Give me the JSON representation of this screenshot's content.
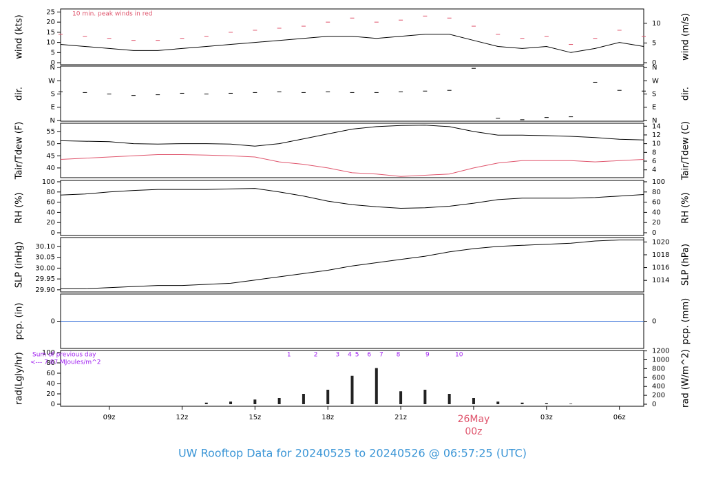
{
  "title": "UW Rooftop Data for 20240525  to  20240526 @ 06:57:25  (UTC)",
  "chart_data": [
    {
      "type": "line",
      "ylabel": "wind (kts)",
      "y2label": "wind (m/s)",
      "annotation": "10 min. peak winds in red",
      "xlim": [
        7,
        31
      ],
      "ylim": [
        -1,
        26.5
      ],
      "yticks": [
        0,
        5,
        10,
        15,
        20,
        25
      ],
      "y2lim": [
        -0.51,
        13.63
      ],
      "y2ticks": [
        0,
        5,
        10
      ],
      "x": [
        7,
        8,
        9,
        10,
        11,
        12,
        13,
        14,
        15,
        16,
        17,
        18,
        19,
        20,
        21,
        22,
        23,
        24,
        25,
        26,
        27,
        28,
        29,
        30,
        31
      ],
      "series": [
        {
          "name": "wind",
          "color": "#000000",
          "marker": "line",
          "values": [
            9,
            8,
            7,
            6,
            6,
            7,
            8,
            9,
            10,
            11,
            12,
            13,
            13,
            12,
            13,
            14,
            14,
            11,
            8,
            7,
            8,
            5,
            7,
            10,
            8
          ]
        },
        {
          "name": "peak",
          "color": "#df536b",
          "marker": "dash",
          "values": [
            14,
            13,
            12,
            11,
            11,
            12,
            13,
            15,
            16,
            17,
            18,
            20,
            22,
            20,
            21,
            23,
            22,
            18,
            14,
            12,
            13,
            9,
            12,
            16,
            13
          ]
        }
      ]
    },
    {
      "type": "scatter",
      "ylabel": "dir.",
      "y2label": "dir.",
      "xlim": [
        7,
        31
      ],
      "ylim": [
        -5,
        370
      ],
      "yticks": [
        {
          "value": 0,
          "label": "N"
        },
        {
          "value": 90,
          "label": "E"
        },
        {
          "value": 180,
          "label": "S"
        },
        {
          "value": 270,
          "label": "W"
        },
        {
          "value": 360,
          "label": "N"
        }
      ],
      "y2lim": [
        -5,
        370
      ],
      "y2ticks": [
        {
          "value": 0,
          "label": "N"
        },
        {
          "value": 90,
          "label": "E"
        },
        {
          "value": 180,
          "label": "S"
        },
        {
          "value": 270,
          "label": "W"
        },
        {
          "value": 360,
          "label": "N"
        }
      ],
      "x": [
        7,
        8,
        9,
        10,
        11,
        12,
        13,
        14,
        15,
        16,
        17,
        18,
        19,
        20,
        21,
        22,
        23,
        24,
        25,
        26,
        27,
        28,
        29,
        30,
        31
      ],
      "series": [
        {
          "name": "dir",
          "color": "#000000",
          "marker": "dash",
          "values": [
            195,
            190,
            180,
            170,
            175,
            185,
            180,
            185,
            190,
            195,
            190,
            195,
            190,
            190,
            195,
            200,
            205,
            355,
            15,
            5,
            20,
            25,
            260,
            205,
            200
          ]
        }
      ]
    },
    {
      "type": "line",
      "ylabel": "Tair/Tdew (F)",
      "y2label": "Tair/Tdew (C)",
      "xlim": [
        7,
        31
      ],
      "ylim": [
        36.0,
        58.4
      ],
      "yticks": [
        40,
        45,
        50,
        55
      ],
      "y2lim": [
        2.22,
        14.67
      ],
      "y2ticks": [
        4,
        6,
        8,
        10,
        12,
        14
      ],
      "x": [
        7,
        8,
        9,
        10,
        11,
        12,
        13,
        14,
        15,
        16,
        17,
        18,
        19,
        20,
        21,
        22,
        23,
        24,
        25,
        26,
        27,
        28,
        29,
        30,
        31
      ],
      "series": [
        {
          "name": "Tair",
          "color": "#000000",
          "marker": "line",
          "values": [
            51.2,
            51,
            50.8,
            50,
            49.8,
            50,
            50,
            49.8,
            49,
            50,
            52,
            54,
            56,
            57,
            57.5,
            57.6,
            57,
            55,
            53.5,
            53.5,
            53.3,
            53,
            52.5,
            51.8,
            51.5
          ]
        },
        {
          "name": "Tdew",
          "color": "#df536b",
          "marker": "line",
          "values": [
            43.5,
            44,
            44.5,
            45,
            45.5,
            45.5,
            45.3,
            45,
            44.5,
            42.5,
            41.5,
            40,
            38,
            37.5,
            36.5,
            37,
            37.5,
            40,
            42,
            43,
            43,
            43,
            42.5,
            43,
            43.5
          ]
        }
      ]
    },
    {
      "type": "line",
      "ylabel": "RH (%)",
      "y2label": "RH (%)",
      "xlim": [
        7,
        31
      ],
      "ylim": [
        -5.4,
        102.7
      ],
      "yticks": [
        0,
        20,
        40,
        60,
        80,
        100
      ],
      "y2lim": [
        -5.4,
        102.7
      ],
      "y2ticks": [
        0,
        20,
        40,
        60,
        80,
        100
      ],
      "x": [
        7,
        8,
        9,
        10,
        11,
        12,
        13,
        14,
        15,
        16,
        17,
        18,
        19,
        20,
        21,
        22,
        23,
        24,
        25,
        26,
        27,
        28,
        29,
        30,
        31
      ],
      "series": [
        {
          "name": "RH",
          "color": "#000000",
          "marker": "line",
          "values": [
            74,
            76,
            80,
            83,
            85,
            85,
            85,
            86,
            87,
            80,
            72,
            62,
            55,
            51,
            48,
            49,
            52,
            58,
            65,
            68,
            68,
            68,
            69,
            72,
            75
          ]
        }
      ]
    },
    {
      "type": "line",
      "ylabel": "SLP (inHg)",
      "y2label": "SLP (hPa)",
      "xlim": [
        7,
        31
      ],
      "ylim": [
        29.89,
        30.141
      ],
      "yticks": [
        {
          "value": 29.9,
          "label": "29.90"
        },
        29.95,
        {
          "value": 30,
          "label": "30.00"
        },
        30.05,
        {
          "value": 30.1,
          "label": "30.10"
        }
      ],
      "y2lim": [
        1012.19,
        1020.69
      ],
      "y2ticks": [
        1014,
        1016,
        1018,
        1020
      ],
      "x": [
        7,
        8,
        9,
        10,
        11,
        12,
        13,
        14,
        15,
        16,
        17,
        18,
        19,
        20,
        21,
        22,
        23,
        24,
        25,
        26,
        27,
        28,
        29,
        30,
        31
      ],
      "series": [
        {
          "name": "SLP",
          "color": "#000000",
          "marker": "line",
          "values": [
            29.905,
            29.905,
            29.91,
            29.915,
            29.92,
            29.92,
            29.925,
            29.93,
            29.945,
            29.96,
            29.975,
            29.99,
            30.01,
            30.025,
            30.04,
            30.055,
            30.075,
            30.09,
            30.1,
            30.105,
            30.11,
            30.115,
            30.125,
            30.13,
            30.13
          ]
        }
      ]
    },
    {
      "type": "line",
      "ylabel": "pcp. (in)",
      "y2label": "pcp. (mm)",
      "xlim": [
        7,
        31
      ],
      "ylim": [
        -1,
        1
      ],
      "yticks": [
        0
      ],
      "y2lim": [
        -25.4,
        25.4
      ],
      "y2ticks": [
        0
      ],
      "x": [
        7,
        8,
        9,
        10,
        11,
        12,
        13,
        14,
        15,
        16,
        17,
        18,
        19,
        20,
        21,
        22,
        23,
        24,
        25,
        26,
        27,
        28,
        29,
        30,
        31
      ],
      "series": [
        {
          "name": "pcp",
          "color": "#2f6bd6",
          "marker": "line",
          "values": [
            0,
            0,
            0,
            0,
            0,
            0,
            0,
            0,
            0,
            0,
            0,
            0,
            0,
            0,
            0,
            0,
            0,
            0,
            0,
            0,
            0,
            0,
            0,
            0,
            0
          ]
        }
      ]
    },
    {
      "type": "bar",
      "ylabel": "rad(Lgly/hr)",
      "y2label": "rad (W/m^2)",
      "notes": [
        "Sum of previous day",
        "<--- 7.87 MJoules/m^2"
      ],
      "hour_marks": [
        {
          "x": 16.4,
          "label": "1"
        },
        {
          "x": 17.5,
          "label": "2"
        },
        {
          "x": 18.4,
          "label": "3"
        },
        {
          "x": 18.9,
          "label": "4"
        },
        {
          "x": 19.2,
          "label": "5"
        },
        {
          "x": 19.7,
          "label": "6"
        },
        {
          "x": 20.2,
          "label": "7"
        },
        {
          "x": 20.9,
          "label": "8"
        },
        {
          "x": 22.1,
          "label": "9"
        },
        {
          "x": 23.4,
          "label": "10"
        }
      ],
      "date_label": "26May",
      "xlim": [
        7,
        31
      ],
      "xticks": [
        {
          "value": 9,
          "label": "09z"
        },
        {
          "value": 12,
          "label": "12z"
        },
        {
          "value": 15,
          "label": "15z"
        },
        {
          "value": 18,
          "label": "18z"
        },
        {
          "value": 21,
          "label": "21z"
        },
        {
          "value": 24,
          "label": "00z"
        },
        {
          "value": 27,
          "label": "03z"
        },
        {
          "value": 30,
          "label": "06z"
        }
      ],
      "ylim": [
        -4,
        104
      ],
      "yticks": [
        0,
        20,
        40,
        60,
        80,
        100
      ],
      "y2lim": [
        -46.5,
        1209.5
      ],
      "y2ticks": [
        0,
        200,
        400,
        600,
        800,
        1000,
        1200
      ],
      "x": [
        7,
        8,
        9,
        10,
        11,
        12,
        13,
        14,
        15,
        16,
        17,
        18,
        19,
        20,
        21,
        22,
        23,
        24,
        25,
        26,
        27,
        28,
        29,
        30,
        31
      ],
      "series": [
        {
          "name": "rad",
          "color": "#222222",
          "values": [
            0,
            0,
            0,
            0,
            0,
            0,
            3,
            5,
            9,
            12,
            20,
            28,
            55,
            70,
            25,
            28,
            20,
            12,
            5,
            3,
            2,
            1,
            0,
            0,
            0
          ]
        }
      ]
    }
  ]
}
